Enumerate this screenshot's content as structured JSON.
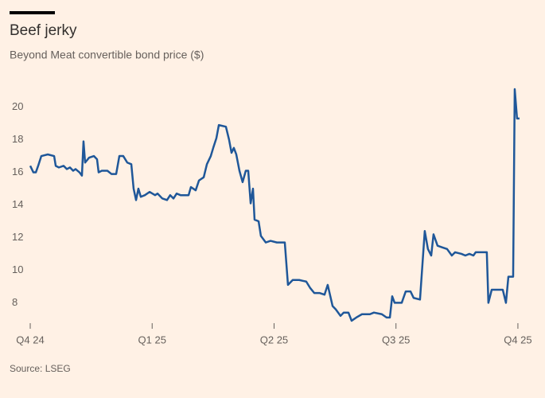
{
  "chart_data": {
    "type": "line",
    "title": "Beef jerky",
    "subtitle": "Beyond Meat convertible bond price ($)",
    "source": "Source: LSEG",
    "color": "#1f5799",
    "x": [
      0,
      0.026,
      0.046,
      0.065,
      0.091,
      0.144,
      0.196,
      0.209,
      0.235,
      0.274,
      0.3,
      0.326,
      0.352,
      0.372,
      0.404,
      0.424,
      0.437,
      0.45,
      0.483,
      0.522,
      0.548,
      0.561,
      0.587,
      0.633,
      0.666,
      0.705,
      0.731,
      0.763,
      0.796,
      0.829,
      0.848,
      0.868,
      0.887,
      0.907,
      0.94,
      0.979,
      1.024,
      1.044,
      1.083,
      1.122,
      1.148,
      1.175,
      1.201,
      1.233,
      1.272,
      1.299,
      1.318,
      1.357,
      1.384,
      1.423,
      1.449,
      1.481,
      1.501,
      1.527,
      1.547,
      1.605,
      1.631,
      1.651,
      1.67,
      1.69,
      1.716,
      1.742,
      1.768,
      1.788,
      1.808,
      1.827,
      1.84,
      1.873,
      1.892,
      1.932,
      1.971,
      2.023,
      2.088,
      2.114,
      2.153,
      2.206,
      2.264,
      2.297,
      2.33,
      2.375,
      2.414,
      2.44,
      2.48,
      2.506,
      2.545,
      2.571,
      2.61,
      2.636,
      2.675,
      2.721,
      2.786,
      2.819,
      2.884,
      2.923,
      2.95,
      2.969,
      2.989,
      3.047,
      3.08,
      3.119,
      3.145,
      3.197,
      3.236,
      3.262,
      3.289,
      3.308,
      3.341,
      3.38,
      3.419,
      3.458,
      3.485,
      3.537,
      3.569,
      3.602,
      3.635,
      3.654,
      3.7,
      3.745,
      3.758,
      3.785,
      3.83,
      3.876,
      3.902,
      3.922,
      3.961,
      3.974,
      3.993,
      4.013
    ],
    "values": [
      16.4,
      16.0,
      16.0,
      16.4,
      17.0,
      17.1,
      17.0,
      16.4,
      16.3,
      16.4,
      16.2,
      16.3,
      16.1,
      16.2,
      16.0,
      15.8,
      17.9,
      16.6,
      16.9,
      17.0,
      16.8,
      16.0,
      16.1,
      16.1,
      15.9,
      15.9,
      17.0,
      17.0,
      16.6,
      16.5,
      15.0,
      14.3,
      15.0,
      14.5,
      14.6,
      14.8,
      14.6,
      14.7,
      14.4,
      14.3,
      14.6,
      14.4,
      14.7,
      14.6,
      14.6,
      14.6,
      15.1,
      14.9,
      15.5,
      15.7,
      16.5,
      17.0,
      17.5,
      18.1,
      18.9,
      18.8,
      18.0,
      17.2,
      17.5,
      17.1,
      16.1,
      15.4,
      16.1,
      16.1,
      14.1,
      15.0,
      13.1,
      13.0,
      12.1,
      11.7,
      11.8,
      11.7,
      11.7,
      9.1,
      9.4,
      9.4,
      9.3,
      8.9,
      8.6,
      8.6,
      8.5,
      9.1,
      7.8,
      7.6,
      7.2,
      7.4,
      7.4,
      6.9,
      7.1,
      7.3,
      7.3,
      7.4,
      7.3,
      7.1,
      7.1,
      8.4,
      8.0,
      8.0,
      8.7,
      8.7,
      8.3,
      8.2,
      12.4,
      11.3,
      10.9,
      12.2,
      11.5,
      11.4,
      11.3,
      10.9,
      11.1,
      11.0,
      10.9,
      11.0,
      10.9,
      11.1,
      11.1,
      11.1,
      8.0,
      8.8,
      8.8,
      8.8,
      8.0,
      9.6,
      9.6,
      21.1,
      19.3,
      19.3
    ],
    "xlim": [
      0,
      4.02
    ],
    "xticks": [
      {
        "value": 0,
        "label": "Q4 24"
      },
      {
        "value": 1,
        "label": "Q1 25"
      },
      {
        "value": 2,
        "label": "Q2 25"
      },
      {
        "value": 3,
        "label": "Q3 25"
      },
      {
        "value": 4,
        "label": "Q4 25"
      }
    ],
    "ylim": [
      6.8,
      21.2
    ],
    "yticks": [
      8,
      10,
      12,
      14,
      16,
      18,
      20
    ],
    "grid": false
  }
}
